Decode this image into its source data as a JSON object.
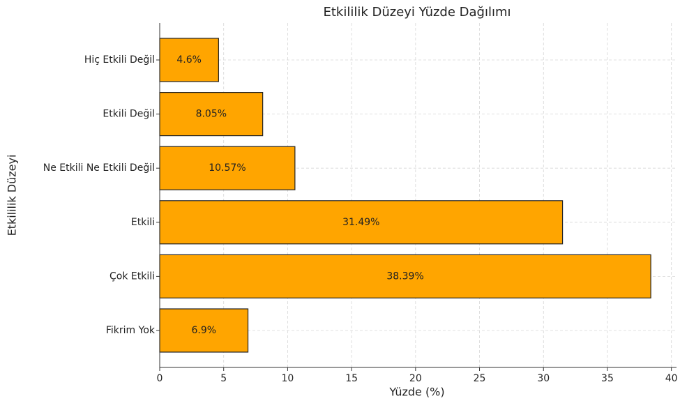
{
  "chart_data": {
    "type": "bar",
    "orientation": "horizontal",
    "title": "Etkililik Düzeyi Yüzde Dağılımı",
    "xlabel": "Yüzde (%)",
    "ylabel": "Etkililik Düzeyi",
    "categories": [
      "Hiç Etkili Değil",
      "Etkili Değil",
      "Ne Etkili Ne Etkili Değil",
      "Etkili",
      "Çok Etkili",
      "Fikrim Yok"
    ],
    "values": [
      4.6,
      8.05,
      10.57,
      31.49,
      38.39,
      6.9
    ],
    "value_labels": [
      "4.6%",
      "8.05%",
      "10.57%",
      "31.49%",
      "38.39%",
      "6.9%"
    ],
    "color": "#ffa500",
    "xlim": [
      0,
      40.4
    ],
    "xticks": [
      0,
      5,
      10,
      15,
      20,
      25,
      30,
      35,
      40
    ],
    "grid": true
  }
}
